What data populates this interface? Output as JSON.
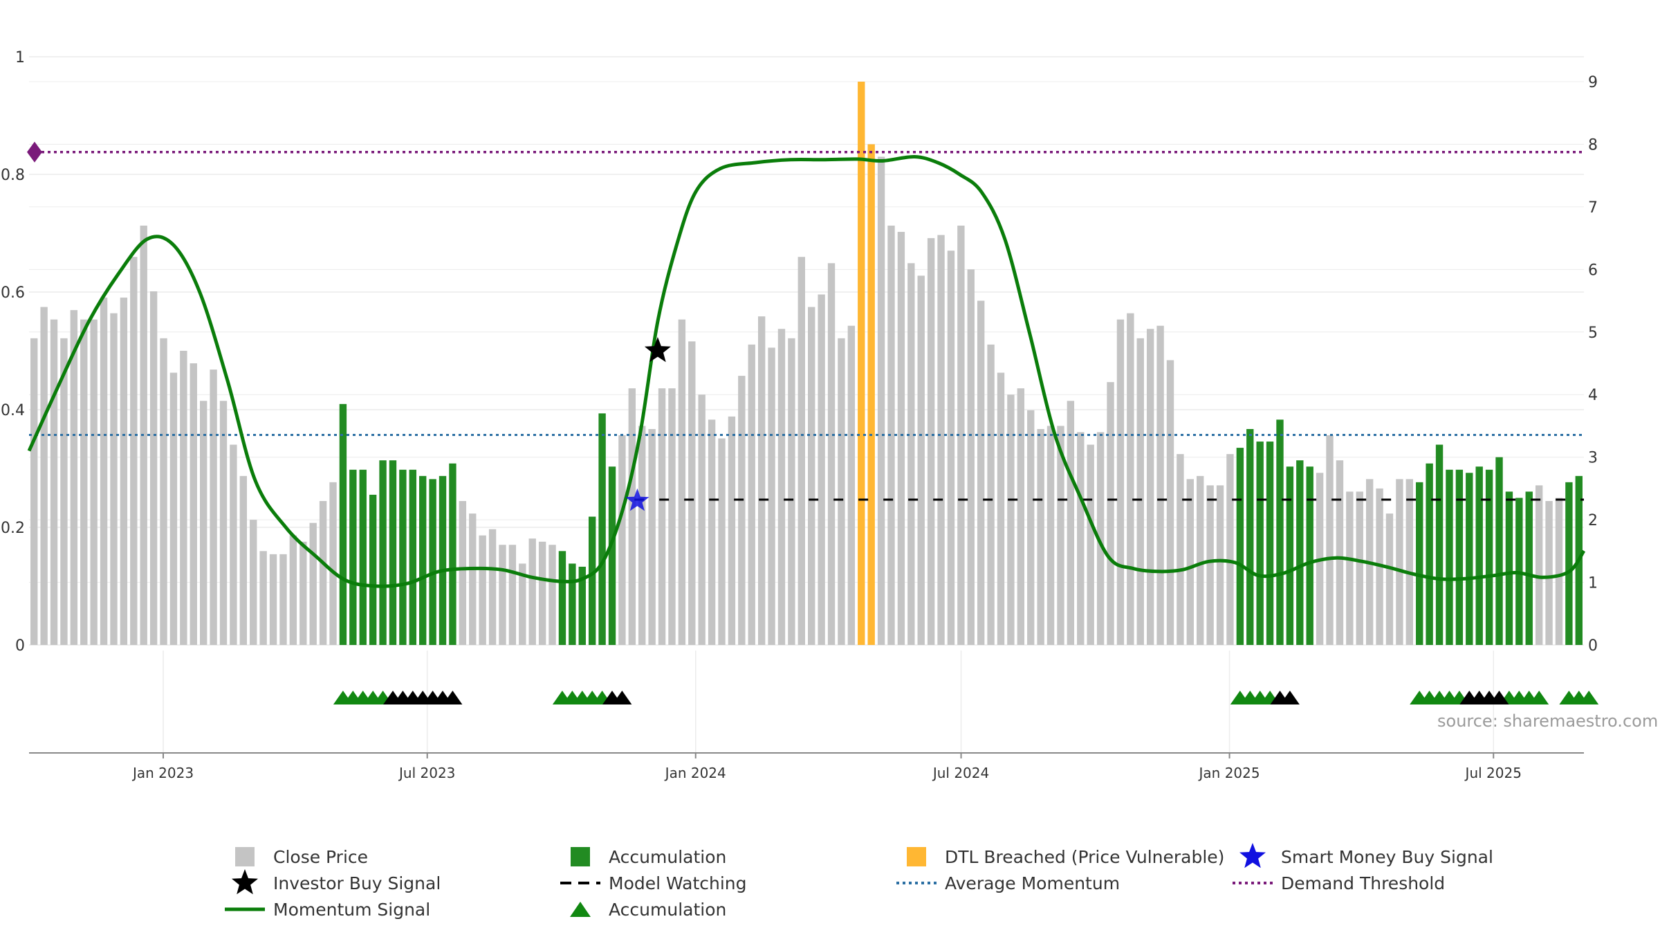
{
  "chart_data": {
    "type": "bar",
    "title": "",
    "xlabel": "",
    "ylabel": "",
    "colors": {
      "close_price": "#c4c4c4",
      "accumulation": "#228b22",
      "dtl_breached": "#ffb733",
      "momentum": "#0a7d0a",
      "average_momentum": "#2b6fa3",
      "demand_threshold": "#7a1a7a",
      "smart_money": "#1010e0",
      "investor_buy": "#000000",
      "model_watching": "#000000",
      "acc_marker": "#118811",
      "axis": "#888888",
      "grid": "#ececec"
    },
    "y_left": {
      "ticks": [
        "0",
        "0.2",
        "0.4",
        "0.6",
        "0.8",
        "1"
      ],
      "range": [
        0,
        1.1
      ]
    },
    "y_right": {
      "ticks": [
        "0",
        "1",
        "2",
        "3",
        "4",
        "5",
        "6",
        "7",
        "8",
        "9"
      ],
      "range": [
        0,
        9
      ]
    },
    "x_axis": {
      "start": "2022-10-01",
      "end": "2025-09-01",
      "ticks": [
        {
          "date": "2023-01-01",
          "label": "Jan 2023"
        },
        {
          "date": "2023-07-01",
          "label": "Jul 2023"
        },
        {
          "date": "2024-01-01",
          "label": "Jan 2024"
        },
        {
          "date": "2024-07-01",
          "label": "Jul 2024"
        },
        {
          "date": "2025-01-01",
          "label": "Jan 2025"
        },
        {
          "date": "2025-07-01",
          "label": "Jul 2025"
        }
      ]
    },
    "close_price": {
      "name": "Close Price",
      "values": [
        4.9,
        5.4,
        5.2,
        4.9,
        5.35,
        5.2,
        5.2,
        5.55,
        5.3,
        5.55,
        6.2,
        6.7,
        5.65,
        4.9,
        4.35,
        4.7,
        4.5,
        3.9,
        4.4,
        3.9,
        3.2,
        2.7,
        2.0,
        1.5,
        1.45,
        1.45,
        1.75,
        1.65,
        1.95,
        2.3,
        2.6,
        3.85,
        2.8,
        2.8,
        2.4,
        2.95,
        2.95,
        2.8,
        2.8,
        2.7,
        2.65,
        2.7,
        2.9,
        2.3,
        2.1,
        1.75,
        1.85,
        1.6,
        1.6,
        1.3,
        1.7,
        1.65,
        1.6,
        1.5,
        1.3,
        1.25,
        2.05,
        3.7,
        2.85,
        3.35,
        4.1,
        3.5,
        3.45,
        4.1,
        4.1,
        5.2,
        4.85,
        4.0,
        3.6,
        3.3,
        3.65,
        4.3,
        4.8,
        5.25,
        4.75,
        5.05,
        4.9,
        6.2,
        5.4,
        5.6,
        6.1,
        4.9,
        5.1,
        9.0,
        8.0,
        7.8,
        6.7,
        6.6,
        6.1,
        5.9,
        6.5,
        6.55,
        6.3,
        6.7,
        6.0,
        5.5,
        4.8,
        4.35,
        4.0,
        4.1,
        3.75,
        3.45,
        3.5,
        3.5,
        3.9,
        3.4,
        3.2,
        3.4,
        4.2,
        5.2,
        5.3,
        4.9,
        5.05,
        5.1,
        4.55,
        3.05,
        2.65,
        2.7,
        2.55,
        2.55,
        3.05,
        3.15,
        3.45,
        3.25,
        3.25,
        3.6,
        2.85,
        2.95,
        2.85,
        2.75,
        3.35,
        2.95,
        2.45,
        2.45,
        2.65,
        2.5,
        2.1,
        2.65,
        2.65,
        2.6,
        2.9,
        3.2,
        2.8,
        2.8,
        2.75,
        2.85,
        2.8,
        3.0,
        2.45,
        2.35,
        2.45,
        2.55,
        2.3,
        2.35,
        2.6,
        2.7
      ]
    },
    "accumulation": {
      "name": "Accumulation",
      "ranges": [
        [
          31,
          42
        ],
        [
          53,
          58
        ],
        [
          121,
          128
        ],
        [
          139,
          150
        ],
        [
          154,
          157
        ]
      ]
    },
    "dtl_breached": {
      "name": "DTL Breached (Price Vulnerable)",
      "indices": [
        83,
        84
      ]
    },
    "momentum": {
      "name": "Momentum Signal",
      "points": [
        [
          "2022-10-01",
          0.33
        ],
        [
          "2022-10-21",
          0.44
        ],
        [
          "2022-11-11",
          0.55
        ],
        [
          "2022-12-01",
          0.63
        ],
        [
          "2022-12-21",
          0.69
        ],
        [
          "2023-01-08",
          0.68
        ],
        [
          "2023-01-26",
          0.6
        ],
        [
          "2023-02-14",
          0.45
        ],
        [
          "2023-03-05",
          0.28
        ],
        [
          "2023-03-26",
          0.2
        ],
        [
          "2023-04-16",
          0.15
        ],
        [
          "2023-05-06",
          0.11
        ],
        [
          "2023-05-28",
          0.1
        ],
        [
          "2023-06-18",
          0.105
        ],
        [
          "2023-07-09",
          0.125
        ],
        [
          "2023-07-31",
          0.13
        ],
        [
          "2023-08-21",
          0.128
        ],
        [
          "2023-09-11",
          0.115
        ],
        [
          "2023-10-01",
          0.108
        ],
        [
          "2023-10-15",
          0.112
        ],
        [
          "2023-10-29",
          0.14
        ],
        [
          "2023-11-12",
          0.23
        ],
        [
          "2023-11-24",
          0.36
        ],
        [
          "2023-12-06",
          0.55
        ],
        [
          "2023-12-19",
          0.68
        ],
        [
          "2024-01-01",
          0.77
        ],
        [
          "2024-01-18",
          0.81
        ],
        [
          "2024-02-11",
          0.82
        ],
        [
          "2024-03-06",
          0.825
        ],
        [
          "2024-03-28",
          0.825
        ],
        [
          "2024-04-21",
          0.826
        ],
        [
          "2024-05-08",
          0.823
        ],
        [
          "2024-05-30",
          0.83
        ],
        [
          "2024-06-15",
          0.82
        ],
        [
          "2024-06-30",
          0.8
        ],
        [
          "2024-07-15",
          0.77
        ],
        [
          "2024-07-31",
          0.69
        ],
        [
          "2024-08-17",
          0.53
        ],
        [
          "2024-09-03",
          0.36
        ],
        [
          "2024-09-21",
          0.25
        ],
        [
          "2024-10-10",
          0.15
        ],
        [
          "2024-10-27",
          0.13
        ],
        [
          "2024-11-14",
          0.125
        ],
        [
          "2024-11-30",
          0.128
        ],
        [
          "2024-12-18",
          0.142
        ],
        [
          "2025-01-05",
          0.14
        ],
        [
          "2025-01-21",
          0.118
        ],
        [
          "2025-02-07",
          0.122
        ],
        [
          "2025-02-25",
          0.14
        ],
        [
          "2025-03-15",
          0.148
        ],
        [
          "2025-04-02",
          0.142
        ],
        [
          "2025-04-20",
          0.132
        ],
        [
          "2025-05-08",
          0.12
        ],
        [
          "2025-05-26",
          0.112
        ],
        [
          "2025-06-13",
          0.113
        ],
        [
          "2025-07-01",
          0.118
        ],
        [
          "2025-07-17",
          0.123
        ],
        [
          "2025-08-04",
          0.115
        ],
        [
          "2025-08-22",
          0.125
        ],
        [
          "2025-09-01",
          0.16
        ]
      ]
    },
    "model_watching": {
      "name": "Model Watching",
      "from": "2023-11-20",
      "to": "2025-09-01",
      "value": 0.247
    },
    "average_momentum": {
      "name": "Average Momentum",
      "value": 0.357
    },
    "demand_threshold": {
      "name": "Demand Threshold",
      "value": 0.838
    },
    "investor_buy": {
      "name": "Investor Buy Signal",
      "points": [
        [
          "2023-12-06",
          0.5
        ]
      ]
    },
    "smart_money_buy": {
      "name": "Smart Money Buy Signal",
      "points": [
        [
          "2023-11-22",
          0.245
        ]
      ]
    },
    "acc_markers": {
      "name": "Accumulation",
      "green_indices": [
        31,
        32,
        33,
        34,
        35,
        53,
        54,
        55,
        56,
        57,
        121,
        122,
        123,
        124,
        139,
        140,
        141,
        142,
        143,
        148,
        149,
        150,
        151,
        154,
        155,
        156
      ],
      "black_indices": [
        36,
        37,
        38,
        39,
        40,
        41,
        42,
        58,
        59,
        125,
        126,
        144,
        145,
        146,
        147
      ]
    },
    "legend": [
      {
        "key": "close_price",
        "label": "Close Price"
      },
      {
        "key": "accumulation",
        "label": "Accumulation"
      },
      {
        "key": "dtl_breached",
        "label": "DTL Breached (Price Vulnerable)"
      },
      {
        "key": "smart_money_buy",
        "label": "Smart Money Buy Signal"
      },
      {
        "key": "investor_buy",
        "label": "Investor Buy Signal"
      },
      {
        "key": "model_watching",
        "label": "Model Watching"
      },
      {
        "key": "average_momentum",
        "label": "Average Momentum"
      },
      {
        "key": "demand_threshold",
        "label": "Demand Threshold"
      },
      {
        "key": "momentum",
        "label": "Momentum Signal"
      },
      {
        "key": "acc_markers",
        "label": "Accumulation"
      }
    ],
    "source": "source: sharemaestro.com"
  }
}
